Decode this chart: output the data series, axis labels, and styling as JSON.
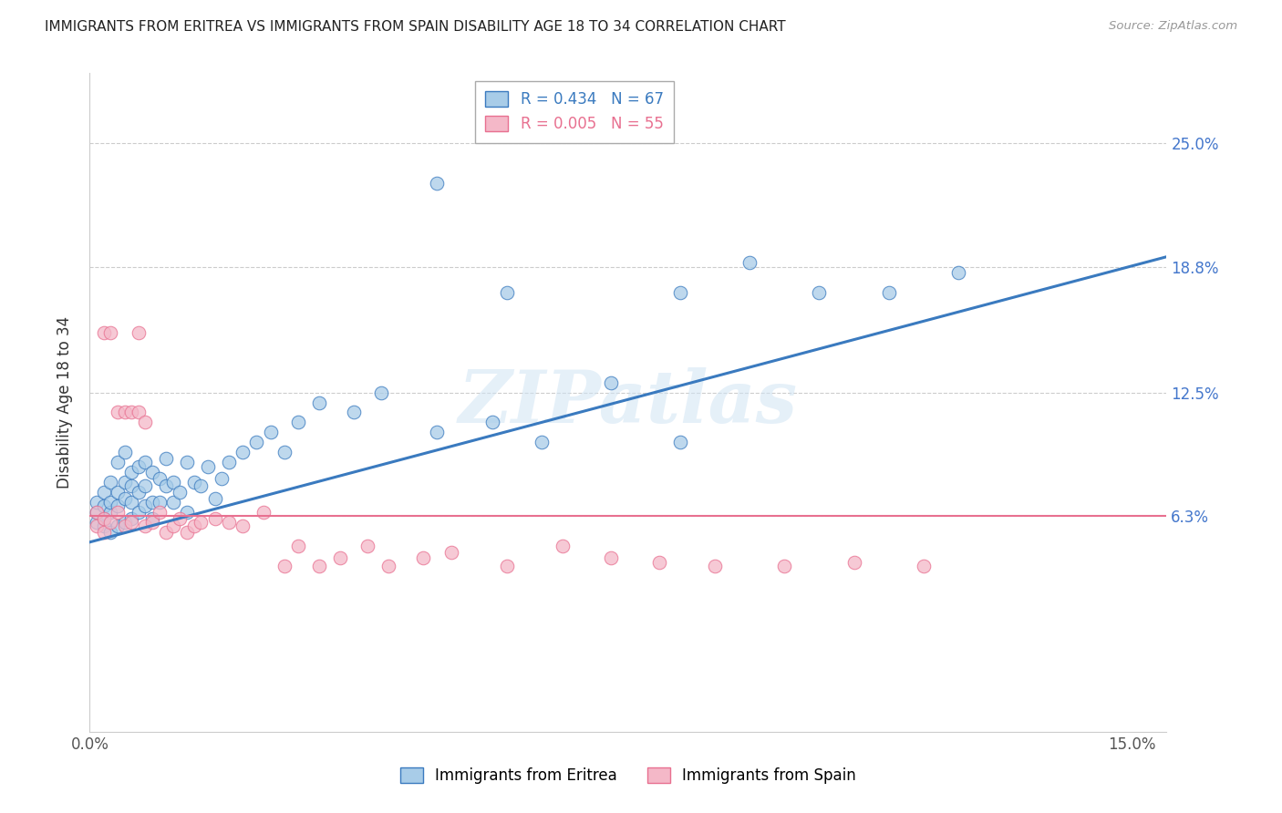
{
  "title": "IMMIGRANTS FROM ERITREA VS IMMIGRANTS FROM SPAIN DISABILITY AGE 18 TO 34 CORRELATION CHART",
  "source": "Source: ZipAtlas.com",
  "ylabel": "Disability Age 18 to 34",
  "xlim": [
    0.0,
    0.155
  ],
  "ylim": [
    -0.045,
    0.285
  ],
  "yticks": [
    0.063,
    0.125,
    0.188,
    0.25
  ],
  "ytick_labels": [
    "6.3%",
    "12.5%",
    "18.8%",
    "25.0%"
  ],
  "xticks": [
    0.0,
    0.05,
    0.1,
    0.15
  ],
  "xtick_labels": [
    "0.0%",
    "",
    "",
    "15.0%"
  ],
  "legend_label1": "Immigrants from Eritrea",
  "legend_label2": "Immigrants from Spain",
  "color_eritrea": "#a8cce8",
  "color_spain": "#f4b8c8",
  "color_line_eritrea": "#3a7abf",
  "color_line_spain": "#e87090",
  "watermark": "ZIPatlas",
  "eritrea_x": [
    0.001,
    0.001,
    0.001,
    0.002,
    0.002,
    0.002,
    0.002,
    0.003,
    0.003,
    0.003,
    0.003,
    0.004,
    0.004,
    0.004,
    0.004,
    0.005,
    0.005,
    0.005,
    0.005,
    0.006,
    0.006,
    0.006,
    0.006,
    0.007,
    0.007,
    0.007,
    0.008,
    0.008,
    0.008,
    0.009,
    0.009,
    0.009,
    0.01,
    0.01,
    0.011,
    0.011,
    0.012,
    0.012,
    0.013,
    0.014,
    0.014,
    0.015,
    0.016,
    0.017,
    0.018,
    0.019,
    0.02,
    0.022,
    0.024,
    0.026,
    0.028,
    0.03,
    0.033,
    0.038,
    0.042,
    0.05,
    0.058,
    0.065,
    0.075,
    0.085,
    0.095,
    0.105,
    0.115,
    0.125,
    0.085,
    0.06,
    0.05
  ],
  "eritrea_y": [
    0.06,
    0.065,
    0.07,
    0.058,
    0.062,
    0.068,
    0.075,
    0.055,
    0.065,
    0.07,
    0.08,
    0.058,
    0.068,
    0.075,
    0.09,
    0.06,
    0.072,
    0.08,
    0.095,
    0.062,
    0.07,
    0.078,
    0.085,
    0.065,
    0.075,
    0.088,
    0.068,
    0.078,
    0.09,
    0.062,
    0.07,
    0.085,
    0.07,
    0.082,
    0.078,
    0.092,
    0.07,
    0.08,
    0.075,
    0.09,
    0.065,
    0.08,
    0.078,
    0.088,
    0.072,
    0.082,
    0.09,
    0.095,
    0.1,
    0.105,
    0.095,
    0.11,
    0.12,
    0.115,
    0.125,
    0.105,
    0.11,
    0.1,
    0.13,
    0.175,
    0.19,
    0.175,
    0.175,
    0.185,
    0.1,
    0.175,
    0.23
  ],
  "spain_x": [
    0.001,
    0.001,
    0.002,
    0.002,
    0.002,
    0.003,
    0.003,
    0.004,
    0.004,
    0.005,
    0.005,
    0.006,
    0.006,
    0.007,
    0.007,
    0.008,
    0.008,
    0.009,
    0.01,
    0.011,
    0.012,
    0.013,
    0.014,
    0.015,
    0.016,
    0.018,
    0.02,
    0.022,
    0.025,
    0.028,
    0.03,
    0.033,
    0.036,
    0.04,
    0.043,
    0.048,
    0.052,
    0.06,
    0.068,
    0.075,
    0.082,
    0.09,
    0.1,
    0.11,
    0.12
  ],
  "spain_y": [
    0.058,
    0.065,
    0.055,
    0.062,
    0.155,
    0.06,
    0.155,
    0.065,
    0.115,
    0.058,
    0.115,
    0.06,
    0.115,
    0.115,
    0.155,
    0.058,
    0.11,
    0.06,
    0.065,
    0.055,
    0.058,
    0.062,
    0.055,
    0.058,
    0.06,
    0.062,
    0.06,
    0.058,
    0.065,
    0.038,
    0.048,
    0.038,
    0.042,
    0.048,
    0.038,
    0.042,
    0.045,
    0.038,
    0.048,
    0.042,
    0.04,
    0.038,
    0.038,
    0.04,
    0.038
  ],
  "eritrea_line_x": [
    0.0,
    0.155
  ],
  "eritrea_line_y": [
    0.05,
    0.193
  ],
  "spain_line_x": [
    0.0,
    0.155
  ],
  "spain_line_y": [
    0.063,
    0.063
  ]
}
